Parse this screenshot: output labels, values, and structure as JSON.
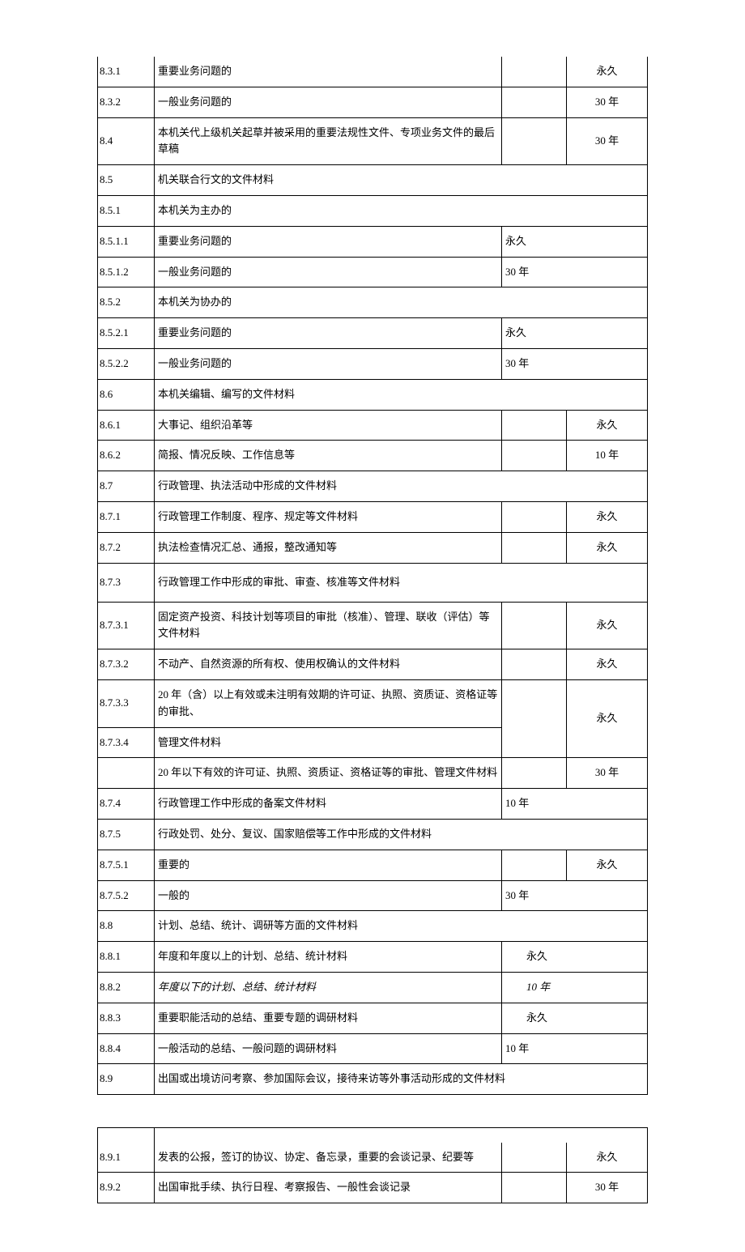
{
  "table1": {
    "rows": [
      {
        "num": "8.3.1",
        "desc": "重要业务问题的",
        "per1": "",
        "per2": "永久",
        "layout": "4col"
      },
      {
        "num": "8.3.2",
        "desc": "一般业务问题的",
        "per1": "",
        "per2": "30 年",
        "layout": "4col"
      },
      {
        "num": "8.4",
        "desc": "本机关代上级机关起草并被采用的重要法规性文件、专项业务文件的最后草稿",
        "per1": "",
        "per2": "30 年",
        "layout": "4col"
      },
      {
        "num": "8.5",
        "desc": "机关联合行文的文件材料",
        "layout": "span"
      },
      {
        "num": "8.5.1",
        "desc": "本机关为主办的",
        "layout": "span"
      },
      {
        "num": "8.5.1.1",
        "desc": "重要业务问题的",
        "per": "永久",
        "layout": "3col-left"
      },
      {
        "num": "8.5.1.2",
        "desc": "一般业务问题的",
        "per": "30 年",
        "layout": "3col-left"
      },
      {
        "num": "8.5.2",
        "desc": "本机关为协办的",
        "layout": "span"
      },
      {
        "num": "8.5.2.1",
        "desc": "重要业务问题的",
        "per": "永久",
        "layout": "3col-left"
      },
      {
        "num": "8.5.2.2",
        "desc": "一般业务问题的",
        "per": "30 年",
        "layout": "3col-left"
      },
      {
        "num": "8.6",
        "desc": "本机关编辑、编写的文件材料",
        "layout": "span"
      },
      {
        "num": "8.6.1",
        "desc": "大事记、组织沿革等",
        "per1": "",
        "per2": "永久",
        "layout": "4col"
      },
      {
        "num": "8.6.2",
        "desc": "简报、情况反映、工作信息等",
        "per1": "",
        "per2": "10 年",
        "layout": "4col"
      },
      {
        "num": "8.7",
        "desc": "行政管理、执法活动中形成的文件材料",
        "layout": "span"
      },
      {
        "num": "8.7.1",
        "desc": "行政管理工作制度、程序、规定等文件材料",
        "per1": "",
        "per2": "永久",
        "layout": "4col"
      },
      {
        "num": "8.7.2",
        "desc": "执法检查情况汇总、通报，整改通知等",
        "per1": "",
        "per2": "永久",
        "layout": "4col"
      },
      {
        "num": "8.7.3",
        "desc": "行政管理工作中形成的审批、审查、核准等文件材料",
        "layout": "span",
        "tall": true
      },
      {
        "num": "8.7.3.1",
        "desc": "固定资产投资、科技计划等项目的审批（核准）、管理、联收（评估）等文件材料",
        "per1": "",
        "per2": "永久",
        "layout": "4col"
      },
      {
        "num": "8.7.3.2",
        "desc": "不动产、自然资源的所有权、使用权确认的文件材料",
        "per1": "",
        "per2": "永久",
        "layout": "4col"
      },
      {
        "layout": "merged-8733"
      },
      {
        "num": "",
        "desc": "20 年以下有效的许可证、执照、资质证、资格证等的审批、管理文件材料",
        "per1": "",
        "per2": "30 年",
        "layout": "4col"
      },
      {
        "num": "8.7.4",
        "desc": "行政管理工作中形成的备案文件材料",
        "per": "10 年",
        "layout": "3col-left"
      },
      {
        "num": "8.7.5",
        "desc": "行政处罚、处分、复议、国家赔偿等工作中形成的文件材料",
        "layout": "span"
      },
      {
        "num": "8.7.5.1",
        "desc": "重要的",
        "per1": "",
        "per2": "永久",
        "layout": "4col"
      },
      {
        "num": "8.7.5.2",
        "desc": "一般的",
        "per": "30 年",
        "layout": "3col-left"
      },
      {
        "num": "8.8",
        "desc": "计划、总结、统计、调研等方面的文件材料",
        "layout": "span"
      },
      {
        "num": "8.8.1",
        "desc": "年度和年度以上的计划、总结、统计材料",
        "per": "永久",
        "layout": "3col-center"
      },
      {
        "num": "8.8.2",
        "desc": "年度以下的计划、总结、统计材料",
        "per": "10 年",
        "layout": "3col-center",
        "italic": true
      },
      {
        "num": "8.8.3",
        "desc": "重要职能活动的总结、重要专题的调研材料",
        "per": "永久",
        "layout": "3col-center"
      },
      {
        "num": "8.8.4",
        "desc": "一般活动的总结、一般问题的调研材料",
        "per": "10 年",
        "layout": "3col-left"
      },
      {
        "num": "8.9",
        "desc": "出国或出境访问考察、参加国际会议，接待来访等外事活动形成的文件材料",
        "layout": "span"
      }
    ],
    "merged8733": {
      "num1": "8.7.3.3",
      "num2": "8.7.3.4",
      "desc1": "20 年（含）以上有效或未注明有效期的许可证、执照、资质证、资格证等的审批、",
      "desc2": "管理文件材料",
      "per2": "永久"
    }
  },
  "table2": {
    "rows": [
      {
        "num": "8.9.1",
        "desc": "发表的公报，签订的协议、协定、备忘录，重要的会谈记录、纪要等",
        "per1": "",
        "per2": "永久"
      },
      {
        "num": "8.9.2",
        "desc": "出国审批手续、执行日程、考察报告、一般性会谈记录",
        "per1": "",
        "per2": "30 年"
      }
    ]
  },
  "colors": {
    "border": "#000000",
    "text": "#000000",
    "background": "#ffffff"
  },
  "font": {
    "family": "SimSun",
    "size_pt": 10
  }
}
